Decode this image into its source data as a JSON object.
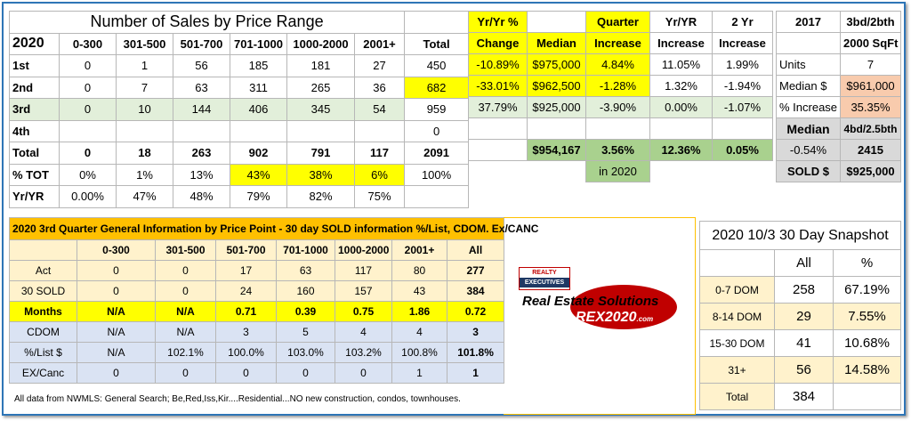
{
  "colors": {
    "yellow": "#ffff00",
    "green": "#a9d18e",
    "light_green": "#e2efda",
    "orange": "#f4b183",
    "peach": "#f8cbad",
    "gray": "#d9d9d9",
    "gold": "#ffc000",
    "cream": "#fff2cc",
    "blue": "#dae3f3",
    "frame": "#2e75b6"
  },
  "sales": {
    "title": "Number of Sales by Price Range",
    "year": "2020",
    "ranges": [
      "0-300",
      "301-500",
      "501-700",
      "701-1000",
      "1000-2000",
      "2001+"
    ],
    "total_label": "Total",
    "rows": [
      {
        "label": "1st",
        "vals": [
          "0",
          "1",
          "56",
          "185",
          "181",
          "27"
        ],
        "total": "450"
      },
      {
        "label": "2nd",
        "vals": [
          "0",
          "7",
          "63",
          "311",
          "265",
          "36"
        ],
        "total": "682"
      },
      {
        "label": "3rd",
        "vals": [
          "0",
          "10",
          "144",
          "406",
          "345",
          "54"
        ],
        "total": "959"
      },
      {
        "label": "4th",
        "vals": [
          "",
          "",
          "",
          "",
          "",
          ""
        ],
        "total": "0"
      },
      {
        "label": "Total",
        "vals": [
          "0",
          "18",
          "263",
          "902",
          "791",
          "117"
        ],
        "total": "2091"
      },
      {
        "label": "% TOT",
        "vals": [
          "0%",
          "1%",
          "13%",
          "43%",
          "38%",
          "6%"
        ],
        "total": "100%"
      },
      {
        "label": "Yr/YR",
        "vals": [
          "0.00%",
          "47%",
          "48%",
          "79%",
          "82%",
          "75%"
        ],
        "total": ""
      }
    ]
  },
  "change": {
    "headers": {
      "yoy1": "Yr/Yr %",
      "yoy2": "Change",
      "median": "Median",
      "q1": "Quarter",
      "q2": "Increase",
      "yr1": "Yr/YR",
      "yr2": "Increase",
      "two1": "2 Yr",
      "two2": "Increase"
    },
    "rows": [
      {
        "change": "-10.89%",
        "median": "$975,000",
        "quarter": "4.84%",
        "yr": "11.05%",
        "two": "1.99%"
      },
      {
        "change": "-33.01%",
        "median": "$962,500",
        "quarter": "-1.28%",
        "yr": "1.32%",
        "two": "-1.94%"
      },
      {
        "change": "37.79%",
        "median": "$925,000",
        "quarter": "-3.90%",
        "yr": "0.00%",
        "two": "-1.07%"
      }
    ],
    "total": {
      "median": "$954,167",
      "quarter": "3.56%",
      "yr": "12.36%",
      "two": "0.05%"
    },
    "in_year": "in 2020"
  },
  "side": {
    "year": "2017",
    "type": "3bd/2bth",
    "sqft": "2000 SqFt",
    "units_label": "Units",
    "units": "7",
    "median_label": "Median $",
    "median": "$961,000",
    "inc_label": "% Increase",
    "inc": "35.35%",
    "median2_label": "Median",
    "type2": "4bd/2.5bth",
    "pct": "-0.54%",
    "sqft2": "2415",
    "sold_label": "SOLD $",
    "sold": "$925,000"
  },
  "general": {
    "title": "2020 3rd Quarter General Information by Price Point  -  30 day SOLD information %/List, CDOM.  Ex/CANC",
    "cols": [
      "0-300",
      "301-500",
      "501-700",
      "701-1000",
      "1000-2000",
      "2001+",
      "All"
    ],
    "rows": [
      {
        "label": "Act",
        "vals": [
          "0",
          "0",
          "17",
          "63",
          "117",
          "80",
          "277"
        ]
      },
      {
        "label": "30 SOLD",
        "vals": [
          "0",
          "0",
          "24",
          "160",
          "157",
          "43",
          "384"
        ]
      },
      {
        "label": "Months",
        "vals": [
          "N/A",
          "N/A",
          "0.71",
          "0.39",
          "0.75",
          "1.86",
          "0.72"
        ]
      },
      {
        "label": "CDOM",
        "vals": [
          "N/A",
          "N/A",
          "3",
          "5",
          "4",
          "4",
          "3"
        ]
      },
      {
        "label": "%/List $",
        "vals": [
          "N/A",
          "102.1%",
          "100.0%",
          "103.0%",
          "103.2%",
          "100.8%",
          "101.8%"
        ]
      },
      {
        "label": "EX/Canc",
        "vals": [
          "0",
          "0",
          "0",
          "0",
          "0",
          "1",
          "1"
        ]
      }
    ],
    "note": "All data from NWMLS: General Search; Be,Red,Iss,Kir....Residential...NO new construction, condos, townhouses."
  },
  "logo": {
    "top1": "REALTY",
    "top2": "EXECUTIVES",
    "main": "Real Estate Solutions",
    "rex": "REX2020",
    ".com": ".com"
  },
  "snapshot": {
    "title": "2020 10/3 30 Day Snapshot",
    "h_all": "All",
    "h_pct": "%",
    "rows": [
      {
        "label": "0-7 DOM",
        "all": "258",
        "pct": "67.19%"
      },
      {
        "label": "8-14 DOM",
        "all": "29",
        "pct": "7.55%"
      },
      {
        "label": "15-30 DOM",
        "all": "41",
        "pct": "10.68%"
      },
      {
        "label": "31+",
        "all": "56",
        "pct": "14.58%"
      }
    ],
    "total_label": "Total",
    "total": "384"
  }
}
